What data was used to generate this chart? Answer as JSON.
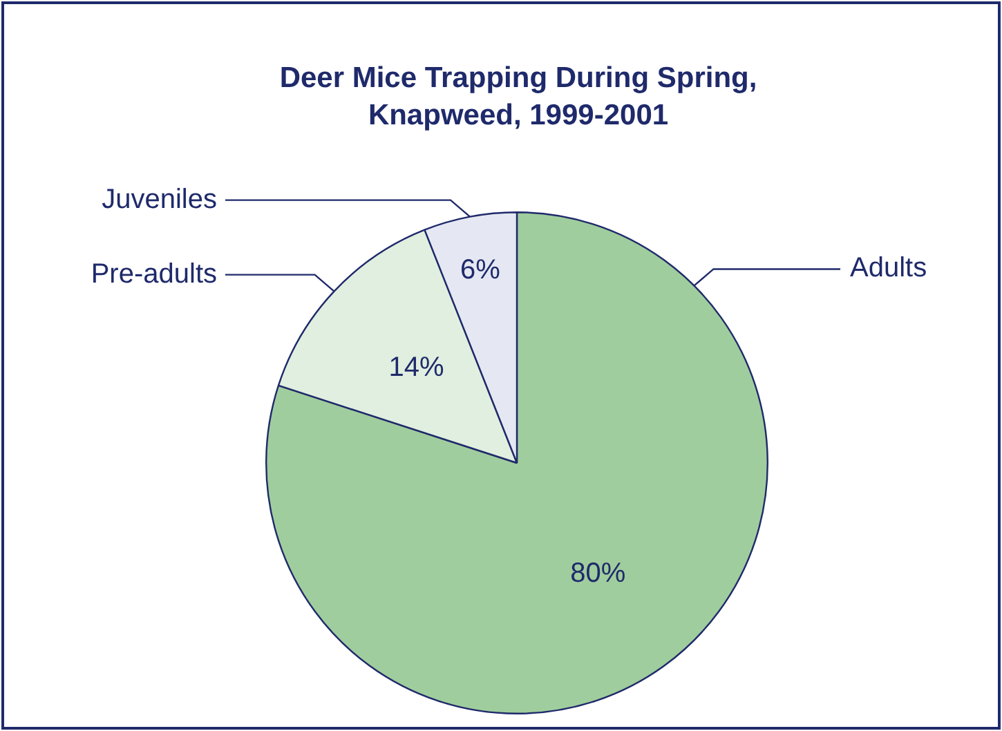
{
  "chart_data": {
    "type": "pie",
    "title": "Deer Mice Trapping During Spring, Knapweed, 1999-2001",
    "categories": [
      "Adults",
      "Pre-adults",
      "Juveniles"
    ],
    "values": [
      80,
      14,
      6
    ],
    "value_labels": [
      "80%",
      "14%",
      "6%"
    ],
    "colors": [
      "#a0cd9d",
      "#e0efdf",
      "#e5e8f2"
    ],
    "legend": false
  }
}
